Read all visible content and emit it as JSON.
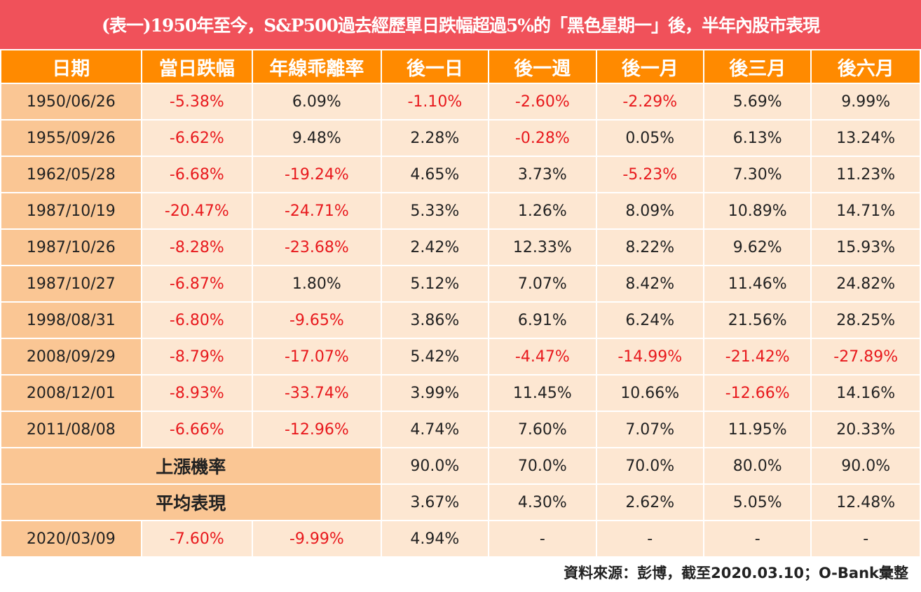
{
  "title": "(表一)1950年至今，S&P500過去經歷單日跌幅超過5%的「黑色星期一」後，半年內股市表現",
  "headers": [
    "日期",
    "當日跌幅",
    "年線乖離率",
    "後一日",
    "後一週",
    "後一月",
    "後三月",
    "後六月"
  ],
  "rows": [
    [
      "1950/06/26",
      "-5.38%",
      "6.09%",
      "-1.10%",
      "-2.60%",
      "-2.29%",
      "5.69%",
      "9.99%"
    ],
    [
      "1955/09/26",
      "-6.62%",
      "9.48%",
      "2.28%",
      "-0.28%",
      "0.05%",
      "6.13%",
      "13.24%"
    ],
    [
      "1962/05/28",
      "-6.68%",
      "-19.24%",
      "4.65%",
      "3.73%",
      "-5.23%",
      "7.30%",
      "11.23%"
    ],
    [
      "1987/10/19",
      "-20.47%",
      "-24.71%",
      "5.33%",
      "1.26%",
      "8.09%",
      "10.89%",
      "14.71%"
    ],
    [
      "1987/10/26",
      "-8.28%",
      "-23.68%",
      "2.42%",
      "12.33%",
      "8.22%",
      "9.62%",
      "15.93%"
    ],
    [
      "1987/10/27",
      "-6.87%",
      "1.80%",
      "5.12%",
      "7.07%",
      "8.42%",
      "11.46%",
      "24.82%"
    ],
    [
      "1998/08/31",
      "-6.80%",
      "-9.65%",
      "3.86%",
      "6.91%",
      "6.24%",
      "21.56%",
      "28.25%"
    ],
    [
      "2008/09/29",
      "-8.79%",
      "-17.07%",
      "5.42%",
      "-4.47%",
      "-14.99%",
      "-21.42%",
      "-27.89%"
    ],
    [
      "2008/12/01",
      "-8.93%",
      "-33.74%",
      "3.99%",
      "11.45%",
      "10.66%",
      "-12.66%",
      "14.16%"
    ],
    [
      "2011/08/08",
      "-6.66%",
      "-12.96%",
      "4.74%",
      "7.60%",
      "7.07%",
      "11.95%",
      "20.33%"
    ]
  ],
  "summary_rows": [
    {
      "label": "上漲機率",
      "values": [
        "90.0%",
        "70.0%",
        "70.0%",
        "80.0%",
        "90.0%"
      ]
    },
    {
      "label": "平均表現",
      "values": [
        "3.67%",
        "4.30%",
        "2.62%",
        "5.05%",
        "12.48%"
      ]
    }
  ],
  "latest_row": [
    "2020/03/09",
    "-7.60%",
    "-9.99%",
    "4.94%",
    "-",
    "-",
    "-",
    "-"
  ],
  "source": "資料來源：彭博，截至2020.03.10；O-Bank彙整",
  "colors": {
    "title_bg": "#f0515a",
    "header_bg": "#ff8a00",
    "date_bg": "#fac694",
    "cell_bg": "#fde7d2",
    "negative_text": "#e8191d"
  }
}
